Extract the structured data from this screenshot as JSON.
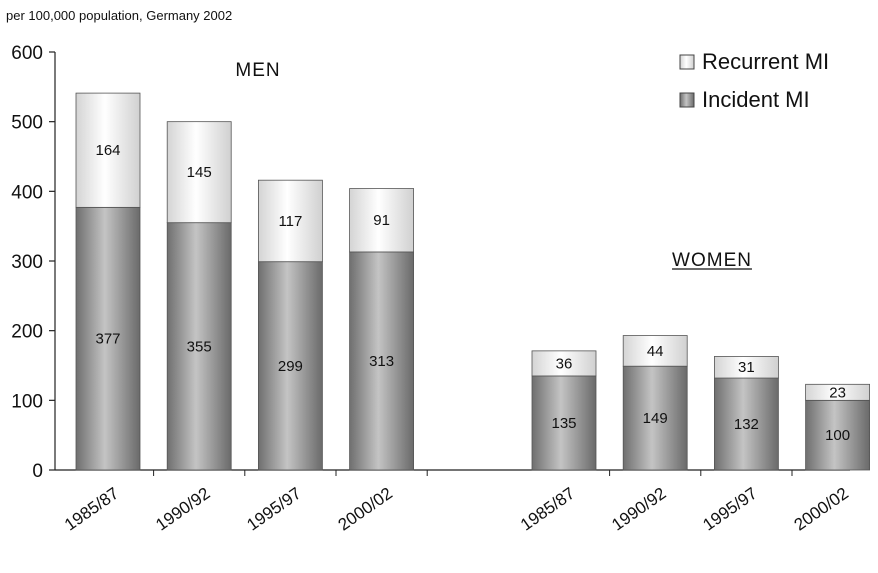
{
  "chart_data": {
    "type": "bar",
    "stacked": true,
    "subtitle": "per 100,000 population, Germany 2002",
    "ylim": [
      0,
      600
    ],
    "yticks": [
      0,
      100,
      200,
      300,
      400,
      500,
      600
    ],
    "grid": false,
    "legend_position": "top-right",
    "groups": [
      {
        "label": "MEN",
        "underline": false,
        "categories": [
          "1985/87",
          "1990/92",
          "1995/97",
          "2000/02"
        ]
      },
      {
        "label": "WOMEN",
        "underline": true,
        "categories": [
          "1985/87",
          "1990/92",
          "1995/97",
          "2000/02"
        ]
      }
    ],
    "series": [
      {
        "name": "Incident MI",
        "color": "#8a8a8a",
        "values": [
          377,
          355,
          299,
          313,
          135,
          149,
          132,
          100
        ]
      },
      {
        "name": "Recurrent MI",
        "color": "#e6e6e6",
        "values": [
          164,
          145,
          117,
          91,
          36,
          44,
          31,
          23
        ]
      }
    ],
    "legend_order": [
      "Recurrent MI",
      "Incident MI"
    ]
  }
}
